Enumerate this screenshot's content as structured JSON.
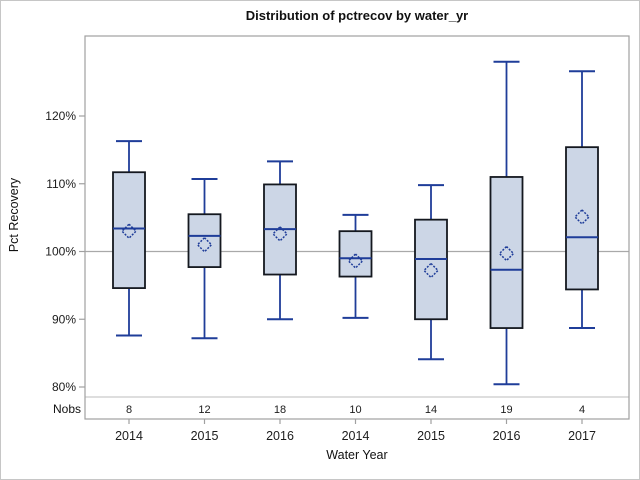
{
  "figure": {
    "background": "#ffffff",
    "border_color": "#c6c6c6"
  },
  "chart_data": {
    "type": "boxplot",
    "title": "Distribution of pctrecov by water_yr",
    "xlabel": "Water Year",
    "ylabel": "Pct Recovery",
    "nobs_label": "Nobs",
    "y_ticks": [
      80,
      90,
      100,
      110,
      120
    ],
    "y_tick_suffix": "%",
    "ylim": [
      75.3,
      131.8
    ],
    "reference_line": 100,
    "grid": false,
    "legend": "none",
    "categories": [
      "2014",
      "2015",
      "2016",
      "2014",
      "2015",
      "2016",
      "2017"
    ],
    "nobs": [
      8,
      12,
      18,
      10,
      14,
      19,
      4
    ],
    "boxes": [
      {
        "whisker_low": 87.6,
        "q1": 94.6,
        "median": 103.4,
        "q3": 111.7,
        "whisker_high": 116.3,
        "mean": 103.0
      },
      {
        "whisker_low": 87.2,
        "q1": 97.7,
        "median": 102.3,
        "q3": 105.5,
        "whisker_high": 110.7,
        "mean": 101.0
      },
      {
        "whisker_low": 90.0,
        "q1": 96.6,
        "median": 103.3,
        "q3": 109.9,
        "whisker_high": 113.3,
        "mean": 102.6
      },
      {
        "whisker_low": 90.2,
        "q1": 96.3,
        "median": 99.0,
        "q3": 103.0,
        "whisker_high": 105.4,
        "mean": 98.6
      },
      {
        "whisker_low": 84.1,
        "q1": 90.0,
        "median": 98.9,
        "q3": 104.7,
        "whisker_high": 109.8,
        "mean": 97.2
      },
      {
        "whisker_low": 80.4,
        "q1": 88.7,
        "median": 97.3,
        "q3": 111.0,
        "whisker_high": 128.0,
        "mean": 99.7
      },
      {
        "whisker_low": 88.7,
        "q1": 94.4,
        "median": 102.1,
        "q3": 115.4,
        "whisker_high": 126.6,
        "mean": 105.1
      }
    ],
    "colors": {
      "box_fill": "#ccd6e6",
      "box_border": "#14181f",
      "whisker": "#1f3d99",
      "median": "#1f3d99",
      "mean_marker": "#1f3d99",
      "reference_line": "#a9a9a9",
      "frame": "#a0a0a0",
      "block_separator": "#bdbdbd",
      "text": "#1c1c1c"
    }
  }
}
